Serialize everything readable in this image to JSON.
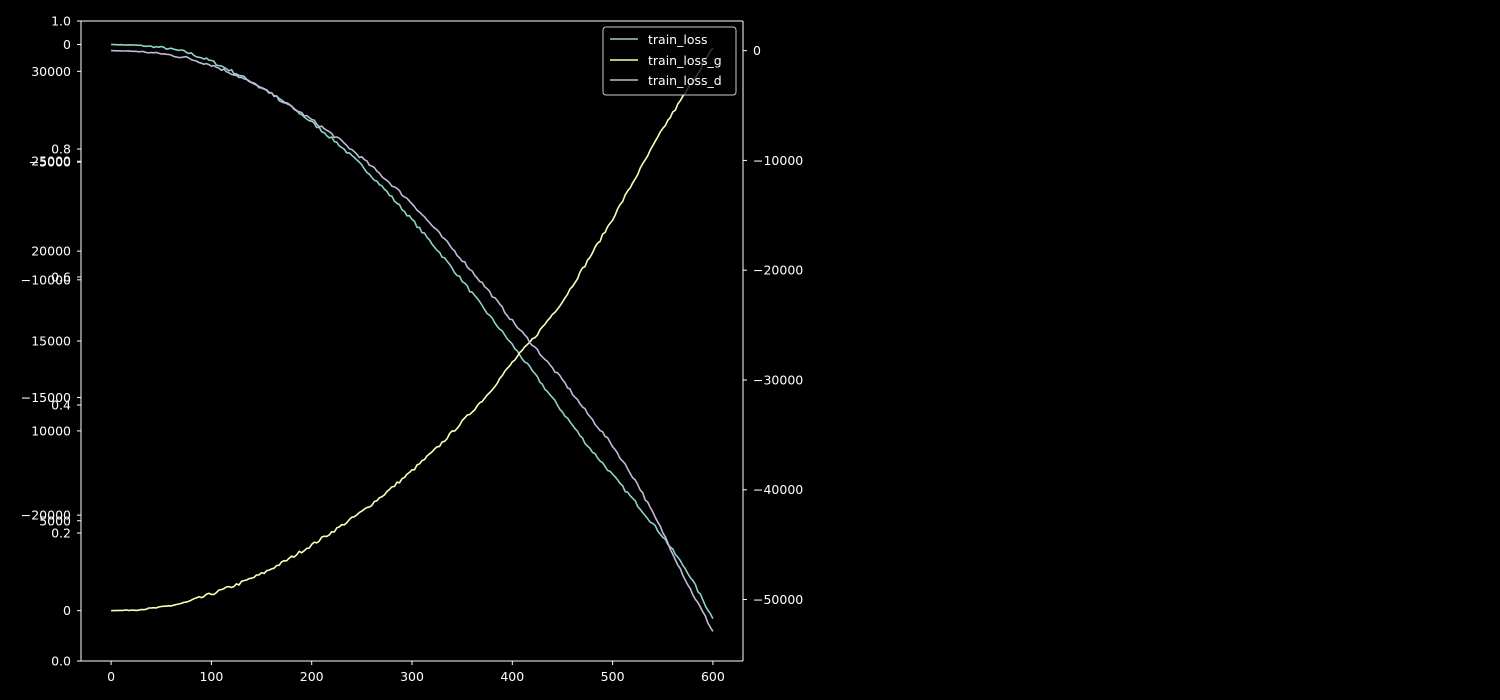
{
  "chart_data": {
    "type": "line",
    "title": "",
    "xlabel": "",
    "ylabel": "",
    "background": "#000000",
    "x_axis": {
      "range": [
        -30,
        630
      ],
      "ticks": [
        0,
        100,
        200,
        300,
        400,
        500,
        600
      ],
      "tick_labels": [
        "0",
        "100",
        "200",
        "300",
        "400",
        "500",
        "600"
      ]
    },
    "y_axes": [
      {
        "id": "base",
        "side": "left",
        "range": [
          0,
          1
        ],
        "ticks": [
          0,
          0.2,
          0.4,
          0.6,
          0.8,
          1
        ],
        "tick_labels": [
          "0.0",
          "0.2",
          "0.4",
          "0.6",
          "0.8",
          "1.0"
        ]
      },
      {
        "id": "loss_g_axis",
        "side": "left",
        "range": [
          -2800,
          32800
        ],
        "ticks": [
          0,
          5000,
          10000,
          15000,
          20000,
          25000,
          30000
        ],
        "tick_labels": [
          "0",
          "5000",
          "10000",
          "15000",
          "20000",
          "25000",
          "30000"
        ]
      },
      {
        "id": "loss_axis",
        "side": "left",
        "range": [
          -26200,
          1000
        ],
        "ticks": [
          -20000,
          -15000,
          -10000,
          -5000,
          0
        ],
        "tick_labels": [
          "−20000",
          "−15000",
          "−10000",
          "−5000",
          "0"
        ]
      },
      {
        "id": "loss_d_axis",
        "side": "right",
        "range": [
          -55600,
          2700
        ],
        "ticks": [
          -50000,
          -40000,
          -30000,
          -20000,
          -10000,
          0
        ],
        "tick_labels": [
          "−50000",
          "−40000",
          "−30000",
          "−20000",
          "−10000",
          "0"
        ]
      }
    ],
    "legend": {
      "placement": "top-right",
      "entries": [
        "train_loss",
        "train_loss_g",
        "train_loss_d"
      ]
    },
    "series": [
      {
        "name": "train_loss",
        "axis": "loss_axis",
        "color": "#8dd3c7",
        "x": [
          0,
          25,
          50,
          75,
          100,
          125,
          150,
          175,
          200,
          225,
          250,
          275,
          300,
          325,
          350,
          375,
          400,
          425,
          450,
          475,
          500,
          525,
          550,
          575,
          600
        ],
        "y": [
          0,
          -30,
          -120,
          -320,
          -710,
          -1230,
          -1830,
          -2510,
          -3300,
          -4170,
          -5150,
          -6260,
          -7450,
          -8710,
          -10030,
          -11400,
          -12770,
          -14170,
          -15610,
          -17040,
          -18300,
          -19570,
          -20900,
          -22420,
          -24400
        ]
      },
      {
        "name": "train_loss_g",
        "axis": "loss_g_axis",
        "color": "#ffffb3",
        "x": [
          0,
          25,
          50,
          75,
          100,
          125,
          150,
          175,
          200,
          225,
          250,
          275,
          300,
          325,
          350,
          375,
          400,
          425,
          450,
          475,
          500,
          525,
          550,
          575,
          600
        ],
        "y": [
          0,
          40,
          180,
          450,
          930,
          1440,
          2040,
          2800,
          3650,
          4550,
          5500,
          6600,
          7780,
          9050,
          10500,
          12000,
          13800,
          15400,
          17200,
          19450,
          21800,
          24300,
          26800,
          29000,
          31300
        ]
      },
      {
        "name": "train_loss_d",
        "axis": "loss_d_axis",
        "color": "#bebada",
        "x": [
          0,
          25,
          50,
          75,
          100,
          125,
          150,
          175,
          200,
          225,
          250,
          275,
          300,
          325,
          350,
          375,
          400,
          425,
          450,
          475,
          500,
          525,
          550,
          575,
          600
        ],
        "y": [
          0,
          -60,
          -270,
          -650,
          -1300,
          -2240,
          -3390,
          -4850,
          -6300,
          -7930,
          -9780,
          -11800,
          -13900,
          -16450,
          -19060,
          -21720,
          -24630,
          -27290,
          -30010,
          -33060,
          -35980,
          -39490,
          -43860,
          -48630,
          -52900
        ]
      }
    ]
  }
}
